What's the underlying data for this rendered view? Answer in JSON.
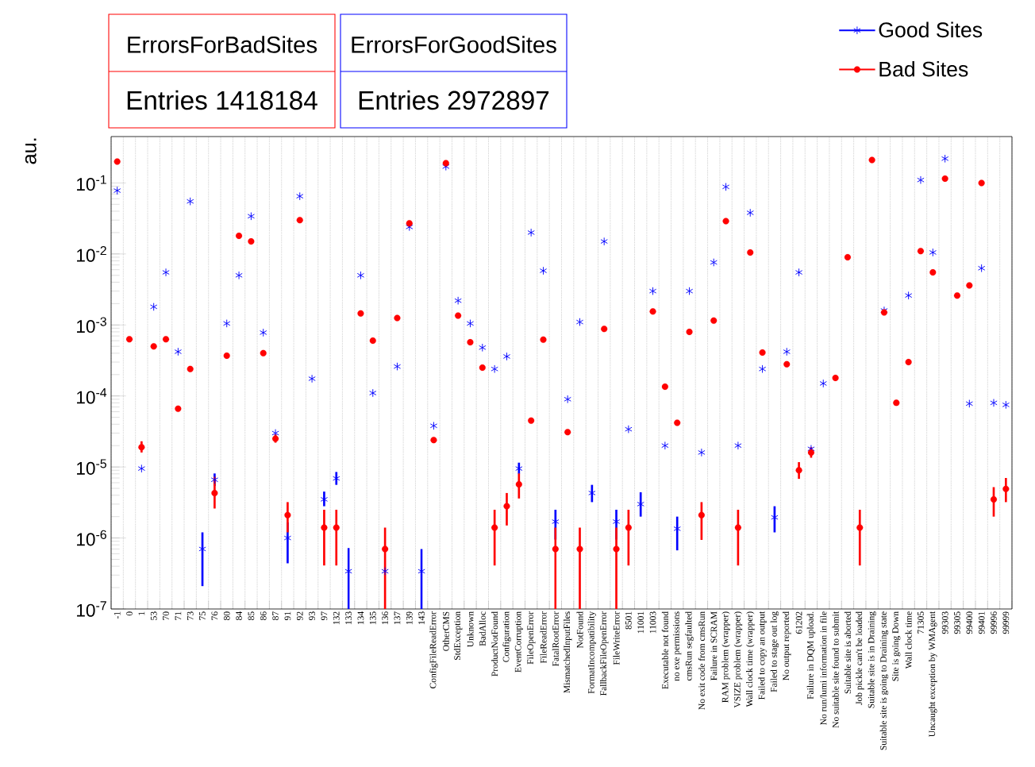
{
  "chart_data": {
    "type": "scatter",
    "ylabel": "au.",
    "log": "y",
    "grid": "x",
    "legend": "top right",
    "annotations": [
      "ErrorsForBadSites",
      "Entries 1418184",
      "ErrorsForGoodSites",
      "Entries 2972897"
    ],
    "categories": [
      "-1",
      "0",
      "1",
      "53",
      "70",
      "71",
      "73",
      "75",
      "76",
      "80",
      "84",
      "85",
      "86",
      "87",
      "91",
      "92",
      "93",
      "97",
      "132",
      "133",
      "134",
      "135",
      "136",
      "137",
      "139",
      "143",
      "ConfigFileReadError",
      "OtherCMS",
      "StdException",
      "Unknown",
      "BadAlloc",
      "ProductNotFound",
      "Configuration",
      "EventCorruption",
      "FileOpenError",
      "FileReadError",
      "FatalRootError",
      "MismatchedInputFiles",
      "NotFound",
      "FormatIncompatibility",
      "FallbackFileOpenError",
      "FileWriteError",
      "8501",
      "11001",
      "11003",
      "Executable not found",
      "no exe permissions",
      "cmsRun segfaulted",
      "No exit code from cmsRun",
      "Failure in SCRAM",
      "RAM problem (wrapper)",
      "VSIZE problem (wrapper)",
      "Wall clock time (wrapper)",
      "Failed to copy an output",
      "Failed to stage out log",
      "No output reported",
      "61202",
      "Failure in DQM upload.",
      "No run/lumi information in file",
      "No suitable site found to submit",
      "Suitable site is aborted",
      "Job pickle can't be loaded",
      "Suitable site is in Draining",
      "Suitable site is going to Draining state",
      "Site is going Down",
      "Wall clock time",
      "71305",
      "Uncaught exception by WMAgent",
      "99303",
      "99305",
      "99400",
      "99401",
      "99996",
      "99999"
    ],
    "ylim": [
      1e-07,
      0.45
    ],
    "yticks": [
      {
        "value": 1e-07,
        "label": "10$^{-7}$"
      },
      {
        "value": 1e-06,
        "label": "10$^{-6}$"
      },
      {
        "value": 1e-05,
        "label": "10$^{-5}$"
      },
      {
        "value": 0.0001,
        "label": "10$^{-4}$"
      },
      {
        "value": 0.001,
        "label": "10$^{-3}$"
      },
      {
        "value": 0.01,
        "label": "10$^{-2}$"
      },
      {
        "value": 0.1,
        "label": "10$^{-1}$"
      }
    ],
    "series": [
      {
        "name": "Good Sites",
        "color": "#0000ff",
        "marker": "cross",
        "values": [
          0.078,
          null,
          9.5e-06,
          0.0018,
          0.0055,
          0.00042,
          0.055,
          7e-07,
          6.6e-06,
          0.00105,
          0.005,
          0.034,
          0.00078,
          3e-05,
          1e-06,
          0.065,
          0.000175,
          3.5e-06,
          6.9e-06,
          3.4e-07,
          0.005,
          0.00011,
          3.4e-07,
          0.00026,
          0.024,
          3.4e-07,
          3.8e-05,
          0.17,
          0.0022,
          0.00105,
          0.00048,
          0.00024,
          0.00036,
          9.5e-06,
          0.02,
          0.0058,
          1.7e-06,
          9e-05,
          0.0011,
          4.3e-06,
          0.015,
          1.7e-06,
          3.4e-05,
          3e-06,
          0.003,
          2e-05,
          1.35e-06,
          0.003,
          1.6e-05,
          0.0076,
          0.088,
          2e-05,
          0.038,
          0.00024,
          1.95e-06,
          0.00042,
          0.0055,
          1.8e-05,
          0.00015,
          null,
          null,
          null,
          null,
          0.0016,
          null,
          0.0026,
          0.11,
          0.0105,
          0.22,
          null,
          7.8e-05,
          0.0063,
          8e-05,
          7.5e-05
        ],
        "errors": [
          null,
          null,
          null,
          null,
          null,
          null,
          null,
          [
            2.1e-07,
            1.2e-06
          ],
          [
            5.4e-06,
            8.1e-06
          ],
          null,
          null,
          null,
          null,
          null,
          [
            4.4e-07,
            1.66e-06
          ],
          null,
          null,
          [
            2.8e-06,
            4.5e-06
          ],
          [
            5.6e-06,
            8.5e-06
          ],
          [
            1e-07,
            7.2e-07
          ],
          null,
          null,
          null,
          null,
          null,
          [
            1e-07,
            7e-07
          ],
          null,
          null,
          null,
          null,
          null,
          null,
          null,
          [
            8e-06,
            1.15e-05
          ],
          null,
          null,
          [
            9.5e-07,
            2.5e-06
          ],
          null,
          null,
          [
            3.2e-06,
            5.6e-06
          ],
          null,
          [
            9.5e-07,
            2.5e-06
          ],
          null,
          [
            2e-06,
            4.4e-06
          ],
          null,
          null,
          [
            6.7e-07,
            2e-06
          ],
          null,
          null,
          null,
          null,
          null,
          null,
          null,
          [
            1.2e-06,
            2.8e-06
          ],
          null,
          null,
          null,
          null,
          null,
          null,
          null,
          null,
          null,
          null,
          null,
          null,
          null,
          null,
          null,
          null,
          null,
          null,
          null
        ]
      },
      {
        "name": "Bad Sites",
        "color": "#ff0000",
        "marker": "circle",
        "values": [
          0.2,
          0.00063,
          1.9e-05,
          0.0005,
          0.00063,
          6.6e-05,
          0.00024,
          null,
          4.3e-06,
          0.00037,
          0.018,
          0.015,
          0.0004,
          2.5e-05,
          2.1e-06,
          0.03,
          null,
          1.4e-06,
          1.4e-06,
          null,
          0.00145,
          0.0006,
          7e-07,
          0.00125,
          0.027,
          null,
          2.4e-05,
          0.19,
          0.00135,
          0.00057,
          0.00025,
          1.4e-06,
          2.8e-06,
          5.7e-06,
          4.5e-05,
          0.00062,
          7e-07,
          3.1e-05,
          7e-07,
          null,
          0.00088,
          7e-07,
          1.4e-06,
          null,
          0.00155,
          0.000135,
          4.2e-05,
          0.0008,
          2.1e-06,
          0.00115,
          0.029,
          1.4e-06,
          0.0105,
          0.00041,
          null,
          0.00028,
          9e-06,
          1.6e-05,
          null,
          0.00018,
          0.009,
          1.4e-06,
          0.21,
          0.0015,
          8e-05,
          0.0003,
          0.011,
          0.0055,
          0.115,
          0.0026,
          0.0036,
          0.1,
          3.5e-06,
          4.9e-06
        ],
        "errors": [
          null,
          null,
          [
            1.6e-05,
            2.3e-05
          ],
          null,
          null,
          null,
          null,
          null,
          [
            2.6e-06,
            7.3e-06
          ],
          null,
          null,
          null,
          null,
          [
            2.2e-05,
            2.9e-05
          ],
          [
            1.2e-06,
            3.2e-06
          ],
          null,
          null,
          [
            4.1e-07,
            2.5e-06
          ],
          [
            4.1e-07,
            2.5e-06
          ],
          null,
          null,
          null,
          [
            1e-07,
            1.4e-06
          ],
          null,
          null,
          null,
          null,
          null,
          null,
          null,
          null,
          [
            4.1e-07,
            2.5e-06
          ],
          [
            1.5e-06,
            4.3e-06
          ],
          [
            3.6e-06,
            8.1e-06
          ],
          null,
          null,
          [
            1e-07,
            1.4e-06
          ],
          null,
          [
            1e-07,
            1.4e-06
          ],
          null,
          null,
          [
            1e-07,
            1.4e-06
          ],
          [
            4.1e-07,
            2.5e-06
          ],
          null,
          null,
          null,
          null,
          null,
          [
            9.4e-07,
            3.2e-06
          ],
          null,
          null,
          [
            4.1e-07,
            2.5e-06
          ],
          null,
          null,
          null,
          null,
          [
            6.8e-06,
            1.17e-05
          ],
          [
            1.35e-05,
            1.9e-05
          ],
          null,
          null,
          null,
          [
            4.1e-07,
            2.5e-06
          ],
          null,
          null,
          null,
          null,
          null,
          null,
          null,
          null,
          null,
          null,
          [
            2e-06,
            5.2e-06
          ],
          [
            3.2e-06,
            7e-06
          ]
        ]
      }
    ]
  }
}
